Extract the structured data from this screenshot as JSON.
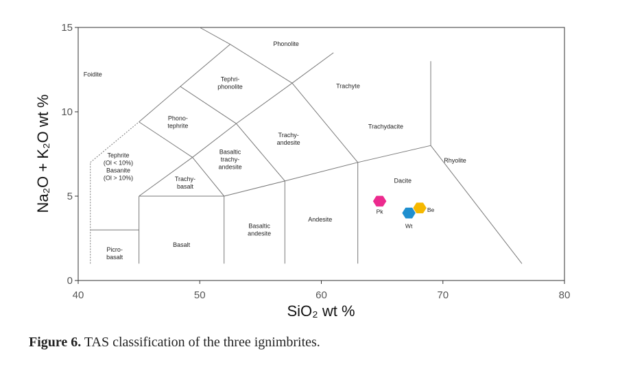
{
  "chart_data": {
    "type": "scatter",
    "title": "",
    "xlabel": "SiO₂ wt %",
    "ylabel": "Na₂O + K₂O wt %",
    "xlim": [
      40,
      80
    ],
    "ylim": [
      0,
      15
    ],
    "x_ticks": [
      "40",
      "50",
      "60",
      "70",
      "80"
    ],
    "y_ticks": [
      "0",
      "5",
      "10",
      "15"
    ],
    "grid": false,
    "legend": "none",
    "series": [
      {
        "name": "Pk",
        "x": 64.8,
        "y": 4.7,
        "color": "#ec2a8e"
      },
      {
        "name": "Wt",
        "x": 67.2,
        "y": 4.0,
        "color": "#1f8fcf"
      },
      {
        "name": "Be",
        "x": 68.1,
        "y": 4.3,
        "color": "#f5b800"
      }
    ],
    "fields": [
      {
        "lines": [
          "Foidite"
        ],
        "x": 41.2,
        "y": 12.1
      },
      {
        "lines": [
          "Phonolite"
        ],
        "x": 57.1,
        "y": 13.9
      },
      {
        "lines": [
          "Tephri-",
          "phonolite"
        ],
        "x": 52.5,
        "y": 11.8
      },
      {
        "lines": [
          "Trachyte"
        ],
        "x": 62.2,
        "y": 11.4
      },
      {
        "lines": [
          "Phono-",
          "tephrite"
        ],
        "x": 48.2,
        "y": 9.5
      },
      {
        "lines": [
          "Trachydacite"
        ],
        "x": 65.3,
        "y": 9.0
      },
      {
        "lines": [
          "Trachy-",
          "andesite"
        ],
        "x": 57.3,
        "y": 8.5
      },
      {
        "lines": [
          "Tephrite",
          "(Ol < 10%)",
          "Basanite",
          "(Ol > 10%)"
        ],
        "x": 43.3,
        "y": 7.3
      },
      {
        "lines": [
          "Basaltic",
          "trachy-",
          "andesite"
        ],
        "x": 52.5,
        "y": 7.5
      },
      {
        "lines": [
          "Rhyolite"
        ],
        "x": 71.0,
        "y": 7.0
      },
      {
        "lines": [
          "Trachy-",
          "basalt"
        ],
        "x": 48.8,
        "y": 5.9
      },
      {
        "lines": [
          "Dacite"
        ],
        "x": 66.7,
        "y": 5.8
      },
      {
        "lines": [
          "Andesite"
        ],
        "x": 59.9,
        "y": 3.5
      },
      {
        "lines": [
          "Basaltic",
          "andesite"
        ],
        "x": 54.9,
        "y": 3.1
      },
      {
        "lines": [
          "Basalt"
        ],
        "x": 48.5,
        "y": 2.0
      },
      {
        "lines": [
          "Picro-",
          "basalt"
        ],
        "x": 43.0,
        "y": 1.7
      }
    ]
  },
  "caption": {
    "label": "Figure 6.",
    "text": " TAS classification of the three ignimbrites."
  }
}
